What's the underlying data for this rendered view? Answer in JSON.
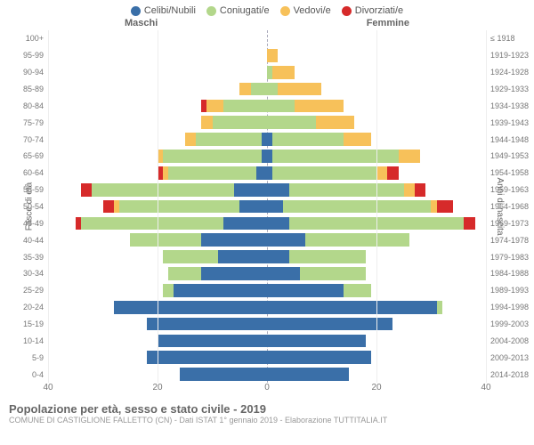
{
  "legend": [
    {
      "label": "Celibi/Nubili",
      "color": "#3a6fa8"
    },
    {
      "label": "Coniugati/e",
      "color": "#b3d78b"
    },
    {
      "label": "Vedovi/e",
      "color": "#f7c15a"
    },
    {
      "label": "Divorziati/e",
      "color": "#d62a2a"
    }
  ],
  "gender": {
    "m": "Maschi",
    "f": "Femmine"
  },
  "y_left_label": "Fasce di età",
  "y_right_label": "Anni di nascita",
  "x_ticks": [
    40,
    20,
    0,
    20,
    40
  ],
  "max": 40,
  "footer": {
    "title": "Popolazione per età, sesso e stato civile - 2019",
    "subtitle": "COMUNE DI CASTIGLIONE FALLETTO (CN) - Dati ISTAT 1° gennaio 2019 - Elaborazione TUTTITALIA.IT"
  },
  "rows": [
    {
      "age": "100+",
      "birth": "≤ 1918",
      "m": [
        0,
        0,
        0,
        0
      ],
      "f": [
        0,
        0,
        0,
        0
      ]
    },
    {
      "age": "95-99",
      "birth": "1919-1923",
      "m": [
        0,
        0,
        0,
        0
      ],
      "f": [
        0,
        0,
        2,
        0
      ]
    },
    {
      "age": "90-94",
      "birth": "1924-1928",
      "m": [
        0,
        0,
        0,
        0
      ],
      "f": [
        0,
        1,
        4,
        0
      ]
    },
    {
      "age": "85-89",
      "birth": "1929-1933",
      "m": [
        0,
        3,
        2,
        0
      ],
      "f": [
        0,
        2,
        8,
        0
      ]
    },
    {
      "age": "80-84",
      "birth": "1934-1938",
      "m": [
        0,
        8,
        3,
        1
      ],
      "f": [
        0,
        5,
        9,
        0
      ]
    },
    {
      "age": "75-79",
      "birth": "1939-1943",
      "m": [
        0,
        10,
        2,
        0
      ],
      "f": [
        0,
        9,
        7,
        0
      ]
    },
    {
      "age": "70-74",
      "birth": "1944-1948",
      "m": [
        1,
        12,
        2,
        0
      ],
      "f": [
        1,
        13,
        5,
        0
      ]
    },
    {
      "age": "65-69",
      "birth": "1949-1953",
      "m": [
        1,
        18,
        1,
        0
      ],
      "f": [
        1,
        23,
        4,
        0
      ]
    },
    {
      "age": "60-64",
      "birth": "1954-1958",
      "m": [
        2,
        16,
        1,
        1
      ],
      "f": [
        1,
        19,
        2,
        2
      ]
    },
    {
      "age": "55-59",
      "birth": "1959-1963",
      "m": [
        6,
        26,
        0,
        2
      ],
      "f": [
        4,
        21,
        2,
        2
      ]
    },
    {
      "age": "50-54",
      "birth": "1964-1968",
      "m": [
        5,
        22,
        1,
        2
      ],
      "f": [
        3,
        27,
        1,
        3
      ]
    },
    {
      "age": "45-49",
      "birth": "1969-1973",
      "m": [
        8,
        26,
        0,
        1
      ],
      "f": [
        4,
        32,
        0,
        2
      ]
    },
    {
      "age": "40-44",
      "birth": "1974-1978",
      "m": [
        12,
        13,
        0,
        0
      ],
      "f": [
        7,
        19,
        0,
        0
      ]
    },
    {
      "age": "35-39",
      "birth": "1979-1983",
      "m": [
        9,
        10,
        0,
        0
      ],
      "f": [
        4,
        14,
        0,
        0
      ]
    },
    {
      "age": "30-34",
      "birth": "1984-1988",
      "m": [
        12,
        6,
        0,
        0
      ],
      "f": [
        6,
        12,
        0,
        0
      ]
    },
    {
      "age": "25-29",
      "birth": "1989-1993",
      "m": [
        17,
        2,
        0,
        0
      ],
      "f": [
        14,
        5,
        0,
        0
      ]
    },
    {
      "age": "20-24",
      "birth": "1994-1998",
      "m": [
        28,
        0,
        0,
        0
      ],
      "f": [
        31,
        1,
        0,
        0
      ]
    },
    {
      "age": "15-19",
      "birth": "1999-2003",
      "m": [
        22,
        0,
        0,
        0
      ],
      "f": [
        23,
        0,
        0,
        0
      ]
    },
    {
      "age": "10-14",
      "birth": "2004-2008",
      "m": [
        20,
        0,
        0,
        0
      ],
      "f": [
        18,
        0,
        0,
        0
      ]
    },
    {
      "age": "5-9",
      "birth": "2009-2013",
      "m": [
        22,
        0,
        0,
        0
      ],
      "f": [
        19,
        0,
        0,
        0
      ]
    },
    {
      "age": "0-4",
      "birth": "2014-2018",
      "m": [
        16,
        0,
        0,
        0
      ],
      "f": [
        15,
        0,
        0,
        0
      ]
    }
  ]
}
